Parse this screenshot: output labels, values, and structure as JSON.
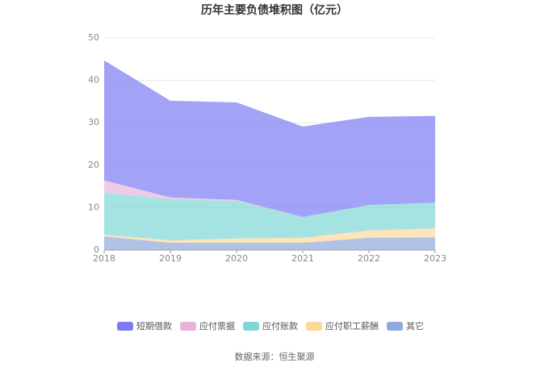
{
  "chart_data": {
    "type": "stacked_area",
    "title": "历年主要负债堆积图（亿元）",
    "categories": [
      "2018",
      "2019",
      "2020",
      "2021",
      "2022",
      "2023"
    ],
    "series": [
      {
        "name": "其它",
        "color": "#8faadc",
        "values": [
          3.2,
          1.7,
          1.7,
          1.7,
          2.9,
          3.0
        ]
      },
      {
        "name": "应付职工薪酬",
        "color": "#fdd89a",
        "values": [
          0.4,
          0.6,
          1.0,
          1.2,
          1.7,
          2.1
        ]
      },
      {
        "name": "应付账款",
        "color": "#7fd6d6",
        "values": [
          9.9,
          9.7,
          8.9,
          4.9,
          6.0,
          6.1
        ]
      },
      {
        "name": "应付票据",
        "color": "#e8b4d8",
        "values": [
          2.9,
          0.4,
          0.2,
          0,
          0,
          0
        ]
      },
      {
        "name": "短期借款",
        "color": "#7b7cf2",
        "values": [
          28.3,
          22.8,
          23.0,
          21.3,
          20.8,
          20.4
        ]
      }
    ],
    "ylim": [
      0,
      50
    ],
    "yticks": [
      0,
      10,
      20,
      30,
      40,
      50
    ],
    "grid": true,
    "source": "数据来源：恒生聚源"
  }
}
